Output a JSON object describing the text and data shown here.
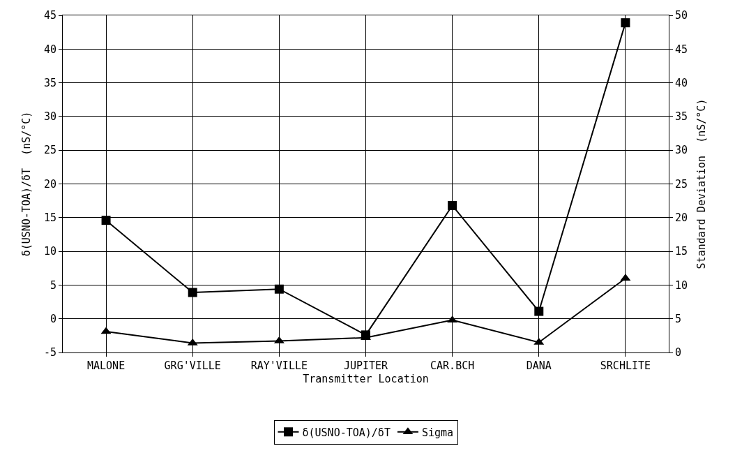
{
  "chart_data": {
    "type": "line",
    "xlabel": "Transmitter Location",
    "ylabel": "δ(USNO-TOA)/δT  (nS/°C)",
    "y2label": "Standard Deviation  (nS/°C)",
    "categories": [
      "MALONE",
      "GRG'VILLE",
      "RAY'VILLE",
      "JUPITER",
      "CAR.BCH",
      "DANA",
      "SRCHLITE"
    ],
    "series": [
      {
        "name": "δ(USNO-TOA)/δT",
        "color": "#000000",
        "marker": "square",
        "values": [
          14.6,
          3.9,
          4.4,
          -2.4,
          16.8,
          1.1,
          43.9
        ]
      },
      {
        "name": "Sigma",
        "color": "#000000",
        "marker": "triangle",
        "axis": "y2",
        "values": [
          3.1,
          1.4,
          1.7,
          2.2,
          4.8,
          1.5,
          11.0
        ]
      }
    ],
    "ylim": [
      -5,
      45
    ],
    "yticks": [
      -5,
      0,
      5,
      10,
      15,
      20,
      25,
      30,
      35,
      40,
      45
    ],
    "y2lim": [
      0,
      50
    ],
    "y2ticks": [
      0,
      5,
      10,
      15,
      20,
      25,
      30,
      35,
      40,
      45,
      50
    ],
    "grid": true,
    "legend": "bottom",
    "line_style": "solid"
  }
}
